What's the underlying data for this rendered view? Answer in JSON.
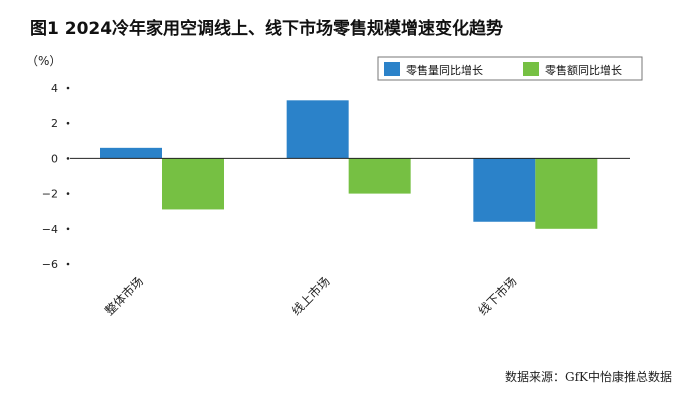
{
  "title": "图1  2024冷年家用空调线上、线下市场零售规模增速变化趋势",
  "source": "数据来源：GfK中怡康推总数据",
  "chart_data": {
    "type": "bar",
    "categories": [
      "整体市场",
      "线上市场",
      "线下市场"
    ],
    "series": [
      {
        "name": "零售量同比增长",
        "color": "#2b82c9",
        "values": [
          0.6,
          3.3,
          -3.6
        ]
      },
      {
        "name": "零售额同比增长",
        "color": "#76c043",
        "values": [
          -2.9,
          -2.0,
          -4.0
        ]
      }
    ],
    "ylabel": "（%）",
    "ylim": [
      -6,
      4
    ],
    "yticks": [
      4,
      2,
      0,
      -2,
      -4,
      -6
    ],
    "ytick_labels": [
      "4",
      "2",
      "0",
      "−2",
      "−4",
      "−6"
    ],
    "grid": false,
    "legend_position": "top-right"
  }
}
